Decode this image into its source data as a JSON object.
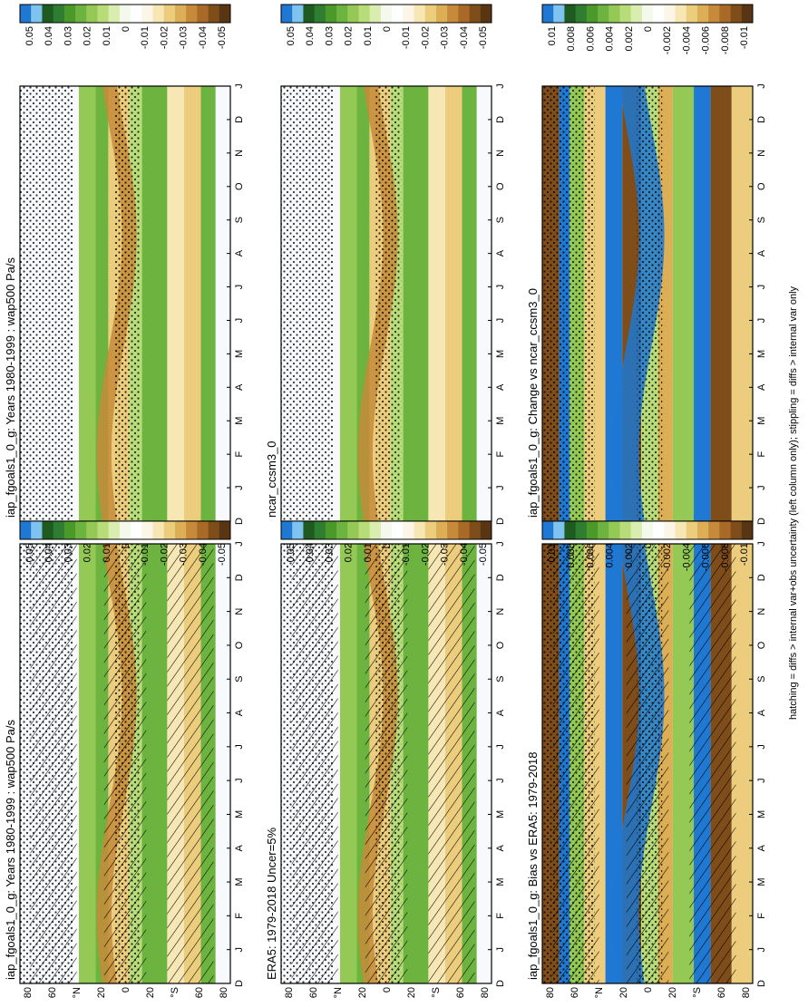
{
  "footnote": "hatching = diffs > internal var+obs uncertainty (left column only); stippling = diffs > internal var only",
  "month_labels": [
    "D",
    "J",
    "F",
    "M",
    "A",
    "M",
    "J",
    "J",
    "A",
    "S",
    "O",
    "N",
    "D",
    "J"
  ],
  "lat_labels": [
    "80",
    "60",
    "°N",
    "20",
    "0",
    "20",
    "°S",
    "60",
    "80"
  ],
  "scales": {
    "main": [
      "0.05",
      "0.04",
      "0.03",
      "0.02",
      "0.01",
      "0",
      "-0.01",
      "-0.02",
      "-0.03",
      "-0.04",
      "-0.05"
    ],
    "diff": [
      "0.01",
      "0.008",
      "0.006",
      "0.004",
      "0.002",
      "0",
      "-0.002",
      "-0.004",
      "-0.006",
      "-0.008",
      "-0.01"
    ]
  },
  "colorbar_colors": [
    "#1f78d1",
    "#7fc4f0",
    "#1f5a1f",
    "#2e7d32",
    "#4a9a2a",
    "#6db33f",
    "#94c955",
    "#b8dc7a",
    "#d9edb0",
    "#f4f9ee",
    "#ffffff",
    "#fbf6e6",
    "#f6e7b5",
    "#eccd7e",
    "#dcae55",
    "#c68b3a",
    "#a86a26",
    "#7f4d1a",
    "#5a3511"
  ],
  "chart_data": [
    {
      "type": "heatmap",
      "title": "iap_fgoals1_0_g: Years 1980-1999 : wap500 Pa/s",
      "column": "left",
      "row": 1,
      "scale": "main",
      "x": [
        "D",
        "J",
        "F",
        "M",
        "A",
        "M",
        "J",
        "J",
        "A",
        "S",
        "O",
        "N",
        "D",
        "J"
      ],
      "y": [
        "80",
        "60",
        "°N",
        "20",
        "0",
        "20",
        "°S",
        "60",
        "80"
      ],
      "palette": "green(+)/brown(-)",
      "hatching": true,
      "stippling": true
    },
    {
      "type": "heatmap",
      "title": "ERA5: 1979-2018 Uncer=5%",
      "column": "left",
      "row": 2,
      "scale": "main",
      "x": [
        "D",
        "J",
        "F",
        "M",
        "A",
        "M",
        "J",
        "J",
        "A",
        "S",
        "O",
        "N",
        "D",
        "J"
      ],
      "y": [
        "80",
        "60",
        "°N",
        "20",
        "0",
        "20",
        "°S",
        "60",
        "80"
      ],
      "palette": "green(+)/brown(-)",
      "hatching": true,
      "stippling": true
    },
    {
      "type": "heatmap",
      "title": "iap_fgoals1_0_g: Bias vs ERA5: 1979-2018",
      "column": "left",
      "row": 3,
      "scale": "diff",
      "x": [
        "D",
        "J",
        "F",
        "M",
        "A",
        "M",
        "J",
        "J",
        "A",
        "S",
        "O",
        "N",
        "D",
        "J"
      ],
      "y": [
        "80",
        "60",
        "°N",
        "20",
        "0",
        "20",
        "°S",
        "60",
        "80"
      ],
      "palette": "green(+)/brown(-)",
      "hatching": true,
      "stippling": true
    },
    {
      "type": "heatmap",
      "title": "iap_fgoals1_0_g: Years 1980-1999 : wap500 Pa/s",
      "column": "right",
      "row": 1,
      "scale": "main",
      "x": [
        "D",
        "J",
        "F",
        "M",
        "A",
        "M",
        "J",
        "J",
        "A",
        "S",
        "O",
        "N",
        "D",
        "J"
      ],
      "y": [
        "80",
        "60",
        "°N",
        "20",
        "0",
        "20",
        "°S",
        "60",
        "80"
      ],
      "palette": "green(+)/brown(-)",
      "hatching": false,
      "stippling": true
    },
    {
      "type": "heatmap",
      "title": "ncar_ccsm3_0",
      "column": "right",
      "row": 2,
      "scale": "main",
      "x": [
        "D",
        "J",
        "F",
        "M",
        "A",
        "M",
        "J",
        "J",
        "A",
        "S",
        "O",
        "N",
        "D",
        "J"
      ],
      "y": [
        "80",
        "60",
        "°N",
        "20",
        "0",
        "20",
        "°S",
        "60",
        "80"
      ],
      "palette": "green(+)/brown(-)",
      "hatching": false,
      "stippling": true
    },
    {
      "type": "heatmap",
      "title": "iap_fgoals1_0_g: Change vs ncar_ccsm3_0",
      "column": "right",
      "row": 3,
      "scale": "diff",
      "x": [
        "D",
        "J",
        "F",
        "M",
        "A",
        "M",
        "J",
        "J",
        "A",
        "S",
        "O",
        "N",
        "D",
        "J"
      ],
      "y": [
        "80",
        "60",
        "°N",
        "20",
        "0",
        "20",
        "°S",
        "60",
        "80"
      ],
      "palette": "green(+)/brown(-)",
      "hatching": false,
      "stippling": true
    }
  ]
}
